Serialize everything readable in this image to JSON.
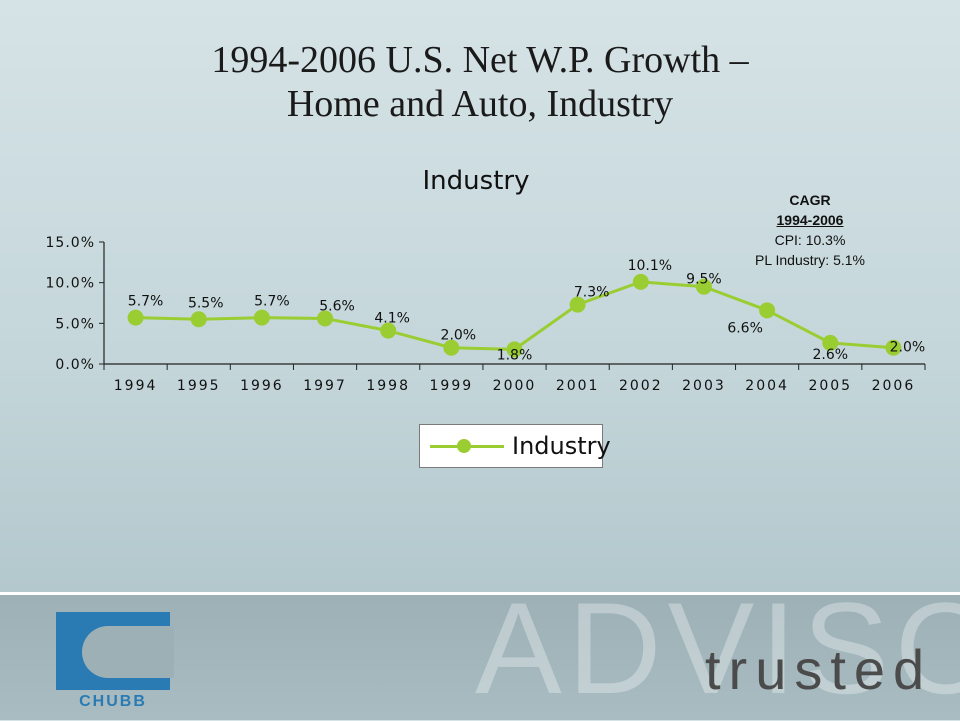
{
  "slide": {
    "title_line1": "1994-2006 U.S. Net W.P. Growth –",
    "title_line2": "Home and Auto, Industry"
  },
  "cagr": {
    "heading": "CAGR",
    "years": "1994-2006",
    "cpi": "CPI: 10.3%",
    "pl_industry": "PL Industry: 5.1%"
  },
  "legend": {
    "label": "Industry"
  },
  "footer": {
    "logo_text": "CHUBB",
    "watermark": "ADVISORS",
    "tagline": "trusted"
  },
  "colors": {
    "series": "#9acd32",
    "logo_blue": "#2a7bb4"
  },
  "chart_data": {
    "type": "line",
    "title": "Industry",
    "xlabel": "",
    "ylabel": "",
    "categories": [
      "1994",
      "1995",
      "1996",
      "1997",
      "1998",
      "1999",
      "2000",
      "2001",
      "2002",
      "2003",
      "2004",
      "2005",
      "2006"
    ],
    "series": [
      {
        "name": "Industry",
        "values": [
          5.7,
          5.5,
          5.7,
          5.6,
          4.1,
          2.0,
          1.8,
          7.3,
          10.1,
          9.5,
          6.6,
          2.6,
          2.0
        ],
        "labels": [
          "5.7%",
          "5.5%",
          "5.7%",
          "5.6%",
          "4.1%",
          "2.0%",
          "1.8%",
          "7.3%",
          "10.1%",
          "9.5%",
          "6.6%",
          "2.6%",
          "2.0%"
        ]
      }
    ],
    "ylim": [
      0,
      15
    ],
    "yticks": [
      0,
      5,
      10,
      15
    ],
    "ytick_labels": [
      "0.0%",
      "5.0%",
      "10.0%",
      "15.0%"
    ],
    "grid": false,
    "legend_position": "bottom"
  }
}
